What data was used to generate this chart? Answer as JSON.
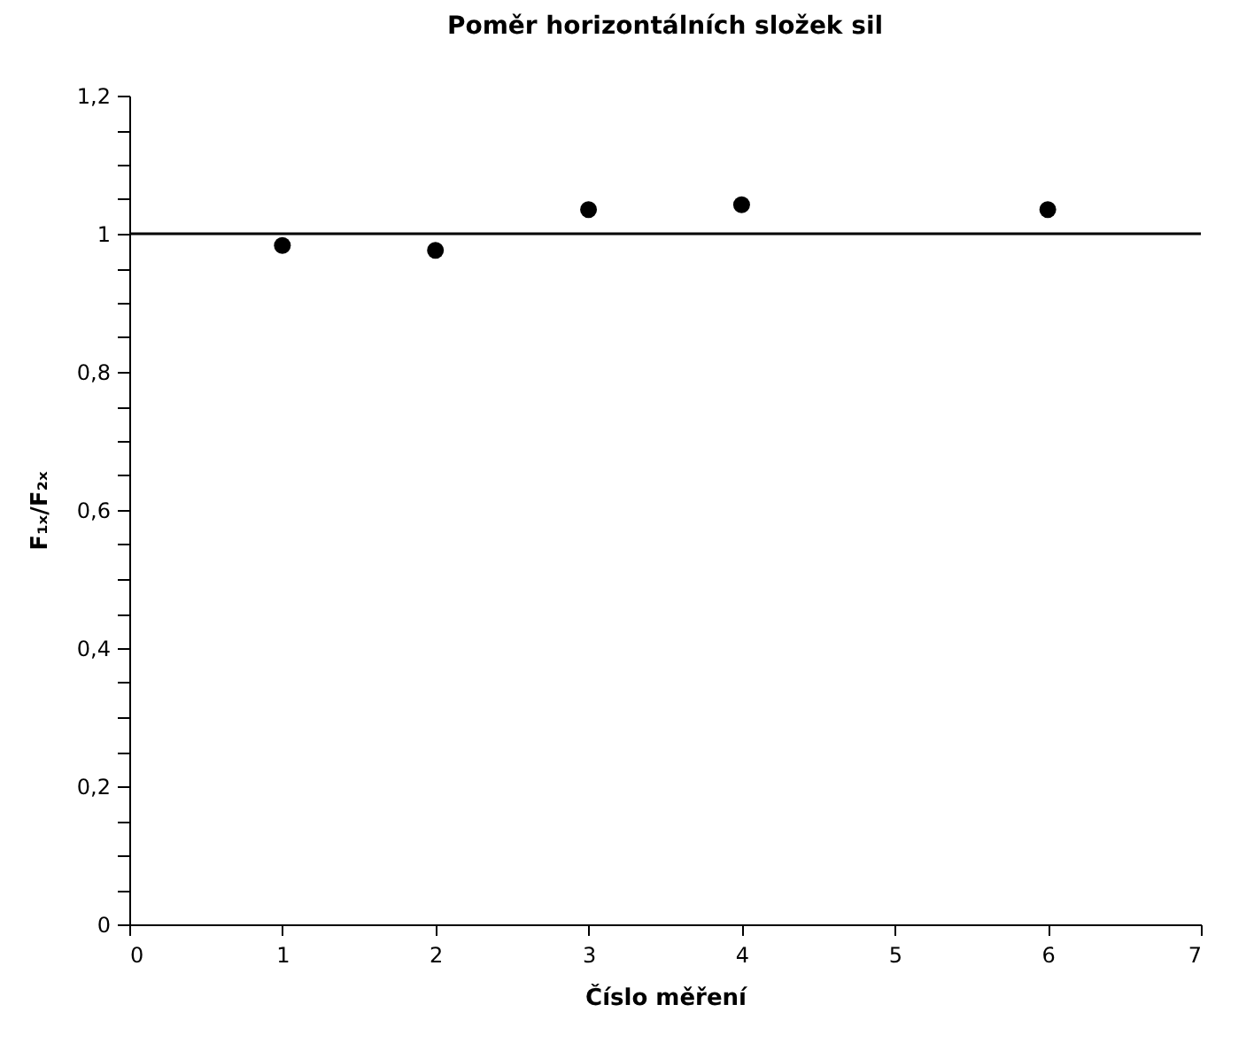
{
  "chart_data": {
    "type": "scatter",
    "title": "Poměr horizontálních složek sil",
    "xlabel": "Číslo měření",
    "ylabel": "F₁ₓ/F₂ₓ",
    "x": [
      1,
      2,
      3,
      4,
      6
    ],
    "series": [
      {
        "color": "#000000",
        "values": [
          0.983,
          0.976,
          1.035,
          1.042,
          1.035
        ]
      }
    ],
    "marker": "circle",
    "grid": false,
    "xlim": [
      0,
      7
    ],
    "xticks": [
      0,
      1,
      2,
      3,
      4,
      5,
      6,
      7
    ],
    "ylim": [
      0,
      1.2
    ],
    "yticks": [
      0,
      {
        "value": 0.05,
        "label": null
      },
      {
        "value": 0.1,
        "label": null
      },
      {
        "value": 0.15,
        "label": null
      },
      {
        "value": 0.2,
        "label": "0,2"
      },
      {
        "value": 0.25,
        "label": null
      },
      {
        "value": 0.3,
        "label": null
      },
      {
        "value": 0.35,
        "label": null
      },
      {
        "value": 0.4,
        "label": "0,4"
      },
      {
        "value": 0.45,
        "label": null
      },
      {
        "value": 0.5,
        "label": null
      },
      {
        "value": 0.55,
        "label": null
      },
      {
        "value": 0.6,
        "label": "0,6"
      },
      {
        "value": 0.65,
        "label": null
      },
      {
        "value": 0.7,
        "label": null
      },
      {
        "value": 0.75,
        "label": null
      },
      {
        "value": 0.8,
        "label": "0,8"
      },
      {
        "value": 0.85,
        "label": null
      },
      {
        "value": 0.9,
        "label": null
      },
      {
        "value": 0.95,
        "label": null
      },
      1,
      {
        "value": 1.05,
        "label": null
      },
      {
        "value": 1.1,
        "label": null
      },
      {
        "value": 1.15,
        "label": null
      },
      {
        "value": 1.2,
        "label": "1,2"
      }
    ],
    "ref_lines": [
      {
        "axis": "y",
        "value": 1,
        "color": "#000000",
        "line_style": "solid"
      }
    ]
  }
}
